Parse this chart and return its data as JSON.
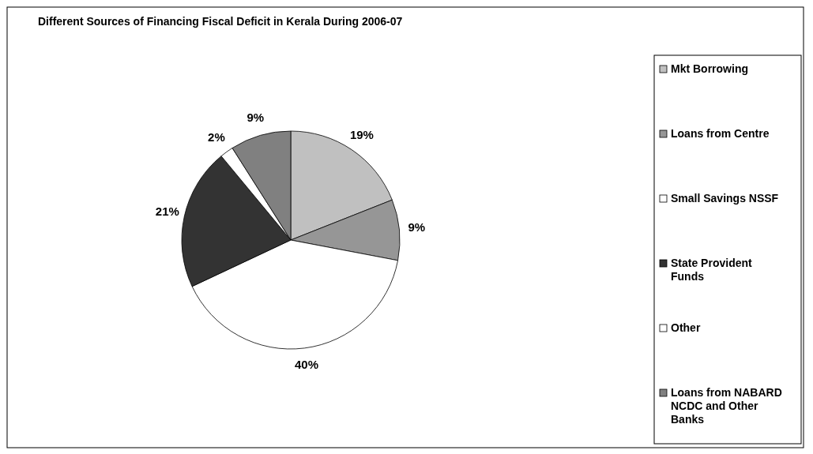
{
  "chart_data": {
    "type": "pie",
    "title": "Different Sources of Financing Fiscal Deficit in Kerala During 2006-07",
    "categories": [
      "Mkt Borrowing",
      "Loans from Centre",
      "Small Savings NSSF",
      "State Provident Funds",
      "Other",
      "Loans from NABARD NCDC and Other Banks"
    ],
    "values": [
      19,
      9,
      40,
      21,
      2,
      9
    ],
    "value_labels": [
      "19%",
      "9%",
      "40%",
      "21%",
      "2%",
      "9%"
    ],
    "colors": [
      "#c0c0c0",
      "#969696",
      "#ffffff",
      "#333333",
      "#ffffff",
      "#808080"
    ],
    "legend": "right"
  }
}
